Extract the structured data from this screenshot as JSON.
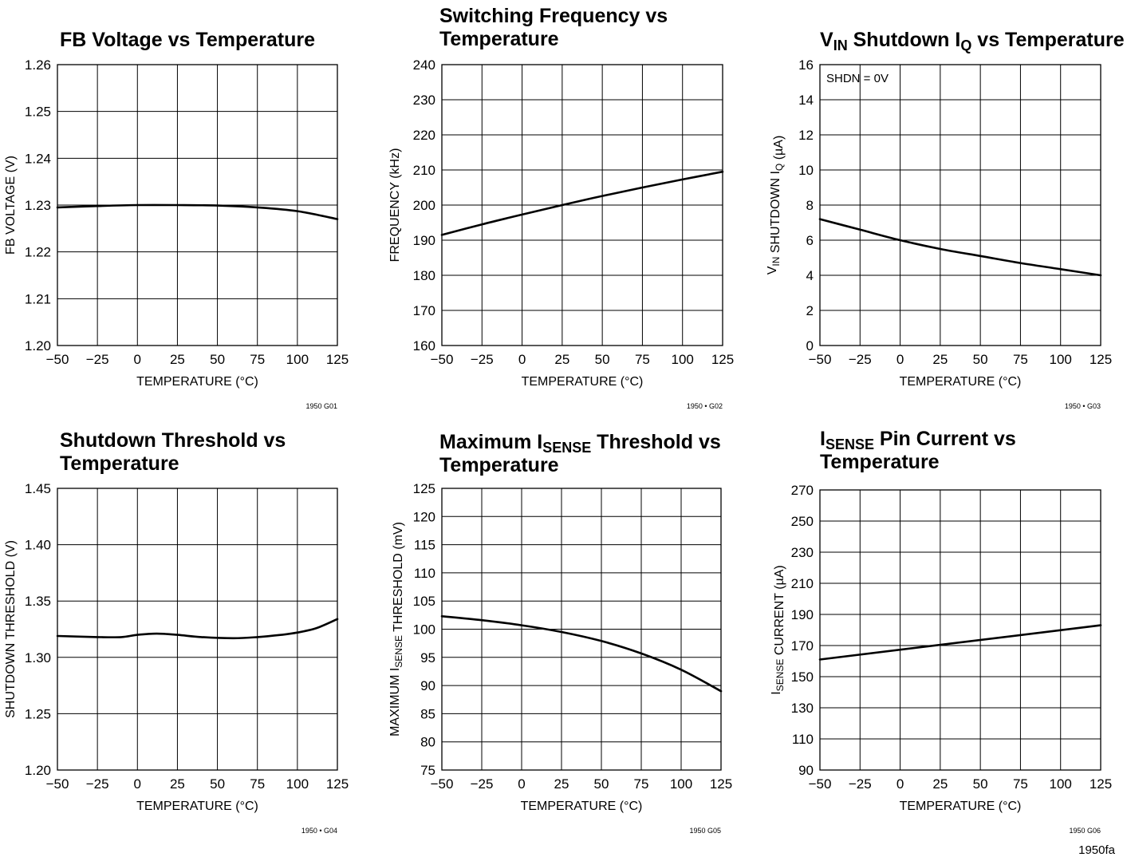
{
  "document": {
    "id": "1950fa"
  },
  "chart_data": [
    {
      "type": "line",
      "title": "FB Voltage vs Temperature",
      "xlabel": "TEMPERATURE (°C)",
      "ylabel": "FB VOLTAGE (V)",
      "figure_id": "1950 G01",
      "xlim": [
        -50,
        125
      ],
      "ylim": [
        1.2,
        1.26
      ],
      "xticks": [
        -50,
        -25,
        0,
        25,
        50,
        75,
        100,
        125
      ],
      "xtick_labels": [
        "−50",
        "−25",
        "0",
        "25",
        "50",
        "75",
        "100",
        "125"
      ],
      "yticks": [
        1.2,
        1.21,
        1.22,
        1.23,
        1.24,
        1.25,
        1.26
      ],
      "ytick_labels": [
        "1.20",
        "1.21",
        "1.22",
        "1.23",
        "1.24",
        "1.25",
        "1.26"
      ],
      "grid": true,
      "series": [
        {
          "x": [
            -50,
            -25,
            0,
            25,
            50,
            75,
            100,
            125
          ],
          "y": [
            1.2295,
            1.2298,
            1.23,
            1.23,
            1.2299,
            1.2295,
            1.2287,
            1.227
          ]
        }
      ]
    },
    {
      "type": "line",
      "title": "Switching Frequency vs\nTemperature",
      "xlabel": "TEMPERATURE (°C)",
      "ylabel": "FREQUENCY (kHz)",
      "figure_id": "1950 • G02",
      "xlim": [
        -50,
        125
      ],
      "ylim": [
        160,
        240
      ],
      "xticks": [
        -50,
        -25,
        0,
        25,
        50,
        75,
        100,
        125
      ],
      "xtick_labels": [
        "−50",
        "−25",
        "0",
        "25",
        "50",
        "75",
        "100",
        "125"
      ],
      "yticks": [
        160,
        170,
        180,
        190,
        200,
        210,
        220,
        230,
        240
      ],
      "ytick_labels": [
        "160",
        "170",
        "180",
        "190",
        "200",
        "210",
        "220",
        "230",
        "240"
      ],
      "grid": true,
      "series": [
        {
          "x": [
            -50,
            -25,
            0,
            25,
            50,
            75,
            100,
            125
          ],
          "y": [
            191.5,
            194.5,
            197.3,
            200.0,
            202.6,
            205.0,
            207.3,
            209.5
          ]
        }
      ]
    },
    {
      "type": "line",
      "title": "V_IN Shutdown I_Q vs Temperature",
      "title_parts": [
        {
          "t": "V"
        },
        {
          "t": "IN",
          "sub": true
        },
        {
          "t": " Shutdown I"
        },
        {
          "t": "Q",
          "sub": true
        },
        {
          "t": " vs Temperature"
        }
      ],
      "xlabel": "TEMPERATURE (°C)",
      "ylabel": "V_IN SHUTDOWN I_Q (µA)",
      "ylabel_parts": [
        {
          "t": "V"
        },
        {
          "t": "IN",
          "sub": true
        },
        {
          "t": " SHUTDOWN I"
        },
        {
          "t": "Q",
          "sub": true
        },
        {
          "t": " (µA)"
        }
      ],
      "figure_id": "1950 • G03",
      "annotation": "SHDN = 0V",
      "xlim": [
        -50,
        125
      ],
      "ylim": [
        0,
        16
      ],
      "xticks": [
        -50,
        -25,
        0,
        25,
        50,
        75,
        100,
        125
      ],
      "xtick_labels": [
        "−50",
        "−25",
        "0",
        "25",
        "50",
        "75",
        "100",
        "125"
      ],
      "yticks": [
        0,
        2,
        4,
        6,
        8,
        10,
        12,
        14,
        16
      ],
      "ytick_labels": [
        "0",
        "2",
        "4",
        "6",
        "8",
        "10",
        "12",
        "14",
        "16"
      ],
      "grid": true,
      "series": [
        {
          "x": [
            -50,
            -25,
            0,
            25,
            50,
            75,
            100,
            125
          ],
          "y": [
            7.2,
            6.6,
            6.0,
            5.5,
            5.1,
            4.7,
            4.35,
            4.0
          ]
        }
      ]
    },
    {
      "type": "line",
      "title": "Shutdown Threshold vs\nTemperature",
      "xlabel": "TEMPERATURE (°C)",
      "ylabel": "SHUTDOWN THRESHOLD (V)",
      "figure_id": "1950 • G04",
      "xlim": [
        -50,
        125
      ],
      "ylim": [
        1.2,
        1.45
      ],
      "xticks": [
        -50,
        -25,
        0,
        25,
        50,
        75,
        100,
        125
      ],
      "xtick_labels": [
        "−50",
        "−25",
        "0",
        "25",
        "50",
        "75",
        "100",
        "125"
      ],
      "yticks": [
        1.2,
        1.25,
        1.3,
        1.35,
        1.4,
        1.45
      ],
      "ytick_labels": [
        "1.20",
        "1.25",
        "1.30",
        "1.35",
        "1.40",
        "1.45"
      ],
      "grid": true,
      "series": [
        {
          "x": [
            -50,
            -25,
            -10,
            0,
            12,
            25,
            40,
            60,
            75,
            90,
            100,
            112,
            125
          ],
          "y": [
            1.319,
            1.318,
            1.318,
            1.32,
            1.321,
            1.32,
            1.318,
            1.317,
            1.318,
            1.32,
            1.322,
            1.326,
            1.334
          ]
        }
      ]
    },
    {
      "type": "line",
      "title": "Maximum I_SENSE Threshold vs\nTemperature",
      "title_parts": [
        {
          "t": "Maximum I"
        },
        {
          "t": "SENSE",
          "sub": true
        },
        {
          "t": " Threshold vs"
        },
        {
          "br": true
        },
        {
          "t": "Temperature"
        }
      ],
      "xlabel": "TEMPERATURE (°C)",
      "ylabel": "MAXIMUM I_SENSE THRESHOLD (mV)",
      "ylabel_parts": [
        {
          "t": "MAXIMUM I"
        },
        {
          "t": "SENSE",
          "sub": true
        },
        {
          "t": " THRESHOLD (mV)"
        }
      ],
      "figure_id": "1950 G05",
      "xlim": [
        -50,
        125
      ],
      "ylim": [
        75,
        125
      ],
      "xticks": [
        -50,
        -25,
        0,
        25,
        50,
        75,
        100,
        125
      ],
      "xtick_labels": [
        "−50",
        "−25",
        "0",
        "25",
        "50",
        "75",
        "100",
        "125"
      ],
      "yticks": [
        75,
        80,
        85,
        90,
        95,
        100,
        105,
        110,
        115,
        120,
        125
      ],
      "ytick_labels": [
        "75",
        "80",
        "85",
        "90",
        "95",
        "100",
        "105",
        "110",
        "115",
        "120",
        "125"
      ],
      "grid": true,
      "series": [
        {
          "x": [
            -50,
            -25,
            0,
            25,
            50,
            75,
            100,
            125
          ],
          "y": [
            102.3,
            101.6,
            100.7,
            99.5,
            97.9,
            95.7,
            92.8,
            89.0
          ]
        }
      ]
    },
    {
      "type": "line",
      "title": "I_SENSE Pin Current vs\nTemperature",
      "title_parts": [
        {
          "t": "I"
        },
        {
          "t": "SENSE",
          "sub": true
        },
        {
          "t": " Pin Current vs"
        },
        {
          "br": true
        },
        {
          "t": "Temperature"
        }
      ],
      "xlabel": "TEMPERATURE (°C)",
      "ylabel": "I_SENSE CURRENT (µA)",
      "ylabel_parts": [
        {
          "t": "I"
        },
        {
          "t": "SENSE",
          "sub": true
        },
        {
          "t": " CURRENT (µA)"
        }
      ],
      "figure_id": "1950 G06",
      "xlim": [
        -50,
        125
      ],
      "ylim": [
        90,
        270
      ],
      "xticks": [
        -50,
        -25,
        0,
        25,
        50,
        75,
        100,
        125
      ],
      "xtick_labels": [
        "−50",
        "−25",
        "0",
        "25",
        "50",
        "75",
        "100",
        "125"
      ],
      "yticks": [
        90,
        110,
        130,
        150,
        170,
        190,
        210,
        230,
        250,
        270
      ],
      "ytick_labels": [
        "90",
        "110",
        "130",
        "150",
        "170",
        "190",
        "210",
        "230",
        "250",
        "270"
      ],
      "grid": true,
      "series": [
        {
          "x": [
            -50,
            125
          ],
          "y": [
            161,
            183
          ]
        }
      ]
    }
  ]
}
